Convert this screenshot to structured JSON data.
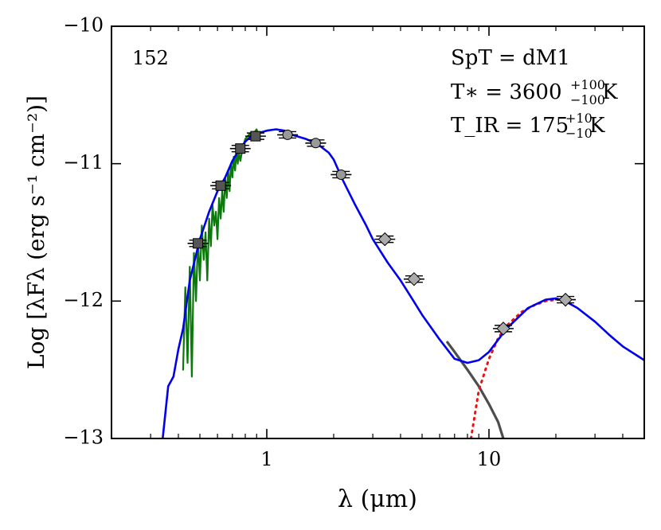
{
  "chart_data": {
    "type": "line",
    "xscale": "log",
    "xlim": [
      0.2,
      50
    ],
    "ylim": [
      -13,
      -10
    ],
    "xticks": [
      1,
      10
    ],
    "xtick_labels": [
      "1",
      "10"
    ],
    "yticks": [
      -13,
      -12,
      -11,
      -10
    ],
    "ytick_labels": [
      "−13",
      "−12",
      "−11",
      "−10"
    ],
    "xlabel": "λ (μm)",
    "ylabel": "Log [λFλ (erg s⁻¹ cm⁻²)]",
    "panel_id": "152",
    "annotations": {
      "spt": "SpT = dM1",
      "tstar": "T∗ = 3600",
      "tstar_err_up": "+100",
      "tstar_err_down": "−100",
      "tstar_unit": "K",
      "tir": "T_IR = 175",
      "tir_err_up": "+10",
      "tir_err_down": "−10",
      "tir_unit": "K"
    },
    "series": [
      {
        "name": "total model SED",
        "style": "blue-solid",
        "x": [
          0.34,
          0.36,
          0.38,
          0.4,
          0.42,
          0.45,
          0.5,
          0.55,
          0.6,
          0.65,
          0.7,
          0.75,
          0.8,
          0.85,
          0.9,
          0.95,
          1.0,
          1.1,
          1.2,
          1.3,
          1.5,
          1.7,
          1.9,
          2.0,
          2.2,
          2.5,
          2.8,
          3.0,
          3.5,
          4.0,
          4.5,
          5.0,
          6.0,
          7.0,
          8.0,
          9.0,
          10.0,
          12.0,
          15.0,
          18.0,
          20.0,
          22.0,
          25.0,
          30.0,
          35.0,
          40.0,
          50.0
        ],
        "y": [
          -13.0,
          -12.62,
          -12.55,
          -12.35,
          -12.2,
          -11.85,
          -11.55,
          -11.35,
          -11.2,
          -11.1,
          -10.98,
          -10.9,
          -10.84,
          -10.8,
          -10.78,
          -10.77,
          -10.76,
          -10.75,
          -10.76,
          -10.79,
          -10.82,
          -10.86,
          -10.92,
          -10.97,
          -11.12,
          -11.3,
          -11.45,
          -11.55,
          -11.72,
          -11.85,
          -11.98,
          -12.1,
          -12.28,
          -12.42,
          -12.45,
          -12.43,
          -12.37,
          -12.2,
          -12.05,
          -11.99,
          -11.98,
          -12.0,
          -12.05,
          -12.15,
          -12.25,
          -12.33,
          -12.43
        ]
      },
      {
        "name": "observed spectrum",
        "style": "green-solid",
        "x": [
          0.42,
          0.43,
          0.44,
          0.45,
          0.46,
          0.47,
          0.48,
          0.49,
          0.5,
          0.51,
          0.52,
          0.53,
          0.54,
          0.55,
          0.56,
          0.57,
          0.58,
          0.59,
          0.6,
          0.61,
          0.62,
          0.63,
          0.64,
          0.65,
          0.66,
          0.67,
          0.68,
          0.69,
          0.7,
          0.71,
          0.72,
          0.73,
          0.74,
          0.75,
          0.76,
          0.78,
          0.8,
          0.82,
          0.84,
          0.86,
          0.88,
          0.9,
          0.92
        ],
        "y": [
          -12.5,
          -11.9,
          -12.45,
          -11.75,
          -12.55,
          -11.65,
          -12.0,
          -11.55,
          -11.85,
          -11.45,
          -11.7,
          -11.5,
          -11.85,
          -11.4,
          -11.6,
          -11.3,
          -11.45,
          -11.35,
          -11.55,
          -11.25,
          -11.4,
          -11.2,
          -11.35,
          -11.1,
          -11.25,
          -11.05,
          -11.2,
          -11.0,
          -11.1,
          -10.95,
          -11.05,
          -10.9,
          -11.0,
          -10.92,
          -10.98,
          -10.88,
          -10.82,
          -10.8,
          -10.78,
          -10.82,
          -10.77,
          -10.75,
          -10.8
        ]
      },
      {
        "name": "stellar photosphere",
        "style": "gray-solid",
        "x": [
          6.5,
          7.0,
          8.0,
          9.0,
          10.0,
          11.0,
          11.6
        ],
        "y": [
          -12.3,
          -12.37,
          -12.5,
          -12.62,
          -12.75,
          -12.88,
          -13.0
        ]
      },
      {
        "name": "IR excess blackbody",
        "style": "red-dotted",
        "x": [
          8.3,
          9.0,
          10.0,
          11.0,
          12.0,
          14.0,
          16.0,
          18.0,
          20.0,
          22.0
        ],
        "y": [
          -13.0,
          -12.65,
          -12.42,
          -12.27,
          -12.18,
          -12.08,
          -12.03,
          -12.0,
          -11.99,
          -11.99
        ]
      }
    ],
    "points": [
      {
        "x": 0.49,
        "y": -11.58,
        "shape": "square"
      },
      {
        "x": 0.62,
        "y": -11.16,
        "shape": "square"
      },
      {
        "x": 0.76,
        "y": -10.89,
        "shape": "square"
      },
      {
        "x": 0.89,
        "y": -10.8,
        "shape": "square"
      },
      {
        "x": 1.24,
        "y": -10.79,
        "shape": "circle"
      },
      {
        "x": 1.66,
        "y": -10.85,
        "shape": "circle"
      },
      {
        "x": 2.16,
        "y": -11.08,
        "shape": "circle"
      },
      {
        "x": 3.4,
        "y": -11.55,
        "shape": "diamond"
      },
      {
        "x": 4.6,
        "y": -11.84,
        "shape": "diamond"
      },
      {
        "x": 11.6,
        "y": -12.2,
        "shape": "diamond"
      },
      {
        "x": 22.1,
        "y": -11.99,
        "shape": "diamond"
      }
    ],
    "colors": {
      "model": "#0000ee",
      "spectrum": "#0a7a0a",
      "photosphere": "#4d4d4d",
      "excess": "#ee1111",
      "square_marker": "#555555",
      "round_marker": "#999999",
      "diamond_marker": "#aaaaaa"
    }
  }
}
